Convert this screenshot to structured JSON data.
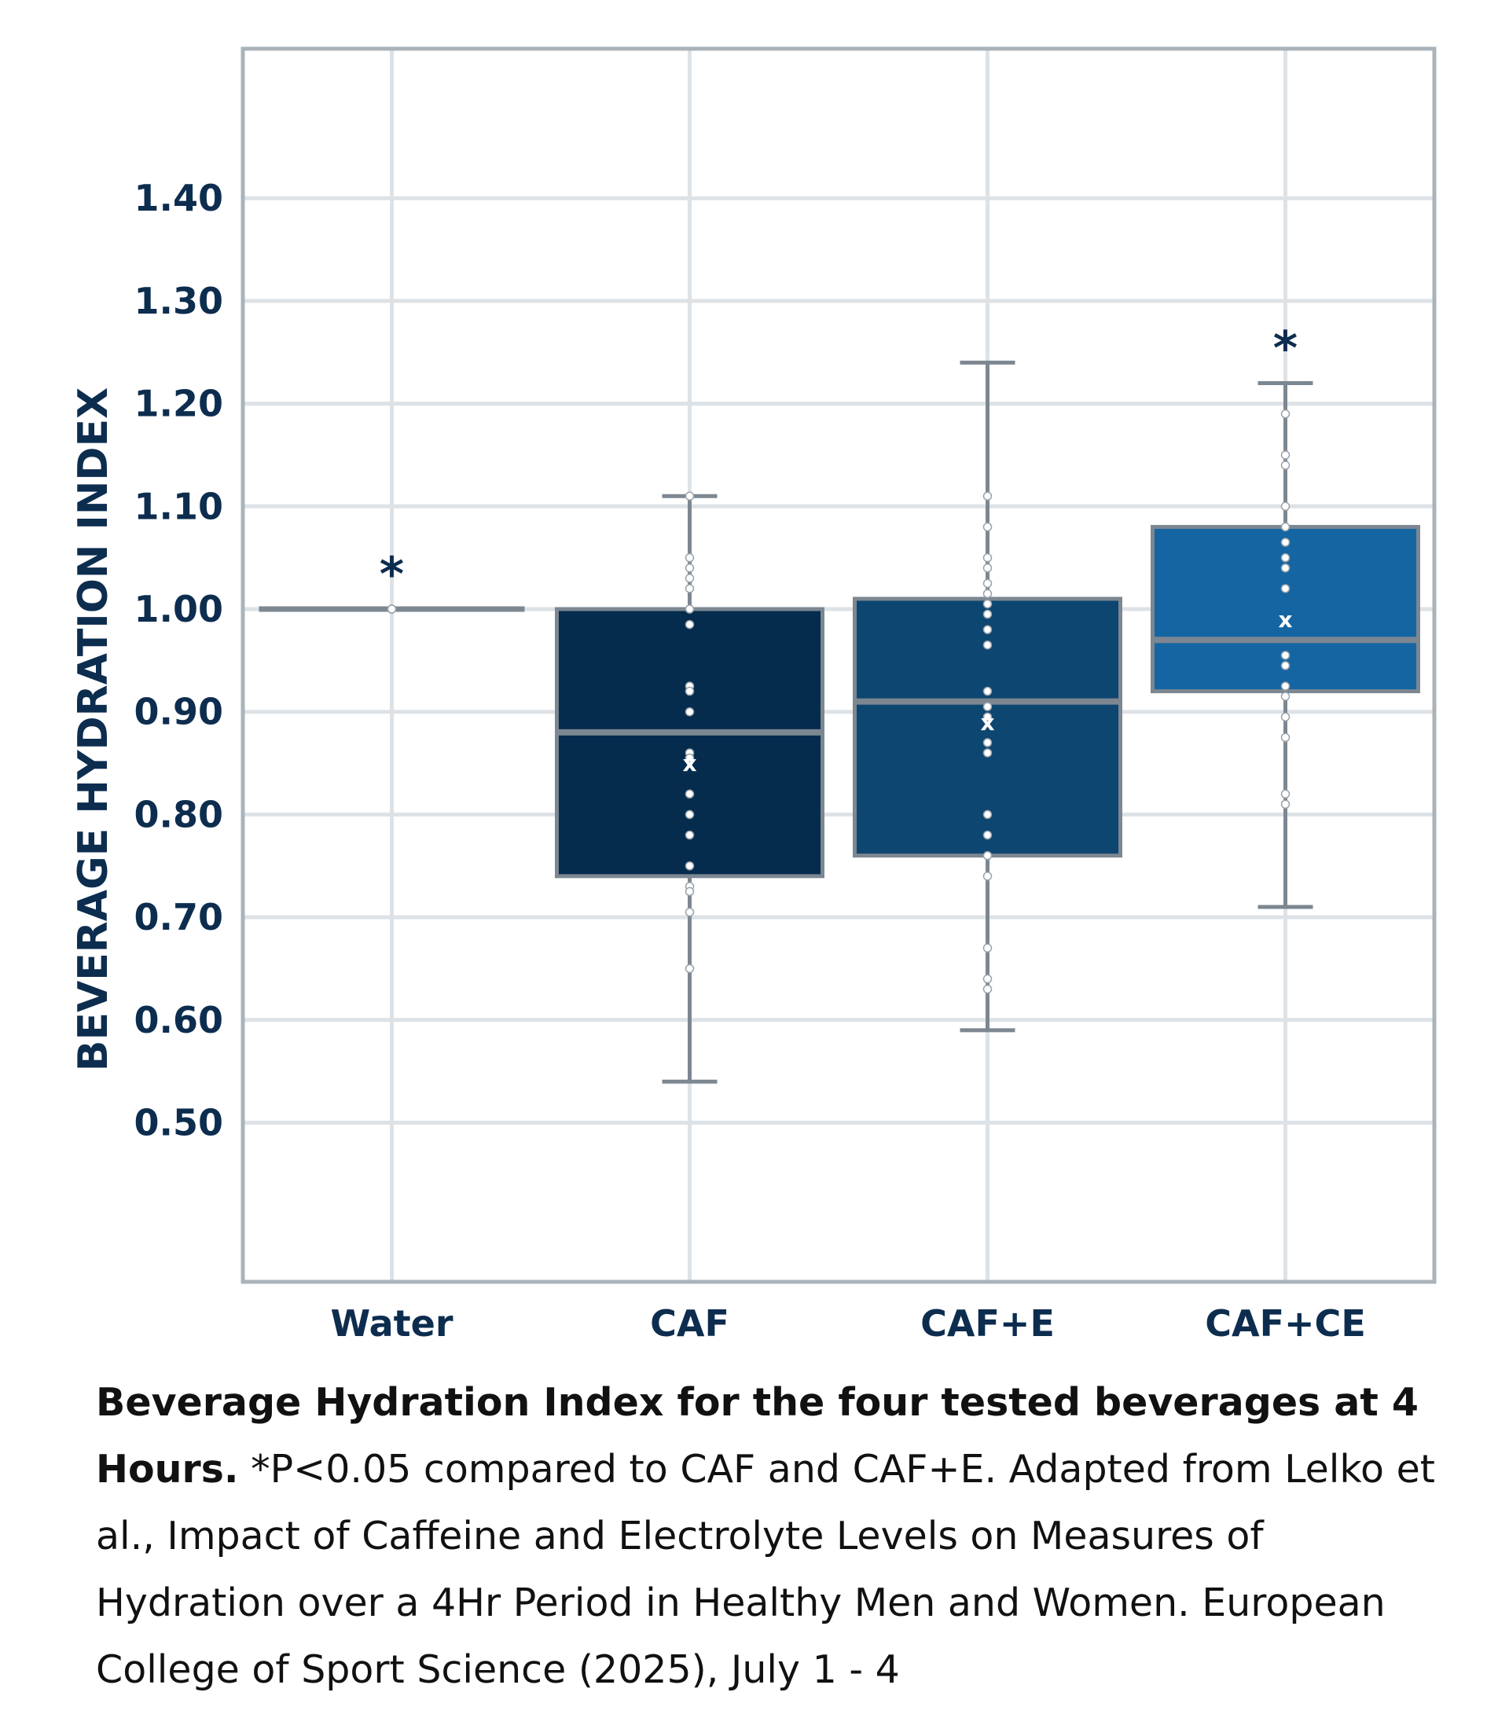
{
  "chart_data": {
    "type": "box",
    "ylabel": "BEVERAGE HYDRATION INDEX",
    "ylim": [
      0.38,
      1.55
    ],
    "yticks": [
      0.5,
      0.6,
      0.7,
      0.8,
      0.9,
      1.0,
      1.1,
      1.2,
      1.3,
      1.4
    ],
    "ytick_labels": [
      "0.50",
      "0.60",
      "0.70",
      "0.80",
      "0.90",
      "1.00",
      "1.10",
      "1.20",
      "1.30",
      "1.40"
    ],
    "grid": true,
    "categories": [
      "Water",
      "CAF",
      "CAF+E",
      "CAF+CE"
    ],
    "colors": [
      "#7c8791",
      "#052c4d",
      "#0d4670",
      "#1565a3"
    ],
    "box_edge_color": "#7c8791",
    "significance_marker": "*",
    "mean_marker": "x",
    "boxes": [
      {
        "name": "Water",
        "min": 1.0,
        "q1": 1.0,
        "median": 1.0,
        "q3": 1.0,
        "max": 1.0,
        "mean": 1.0,
        "significant": true,
        "points": [
          1.0,
          1.0,
          1.0
        ]
      },
      {
        "name": "CAF",
        "min": 0.54,
        "q1": 0.74,
        "median": 0.88,
        "q3": 1.0,
        "max": 1.11,
        "mean": 0.85,
        "significant": false,
        "points": [
          1.11,
          1.05,
          1.04,
          1.03,
          1.02,
          1.0,
          0.985,
          0.925,
          0.92,
          0.9,
          0.86,
          0.855,
          0.82,
          0.8,
          0.78,
          0.75,
          0.73,
          0.725,
          0.705,
          0.65
        ]
      },
      {
        "name": "CAF+E",
        "min": 0.59,
        "q1": 0.76,
        "median": 0.91,
        "q3": 1.01,
        "max": 1.24,
        "mean": 0.89,
        "significant": false,
        "points": [
          1.11,
          1.08,
          1.05,
          1.04,
          1.025,
          1.015,
          1.005,
          0.995,
          0.98,
          0.965,
          0.92,
          0.905,
          0.895,
          0.87,
          0.86,
          0.8,
          0.78,
          0.76,
          0.74,
          0.67,
          0.64,
          0.63
        ]
      },
      {
        "name": "CAF+CE",
        "min": 0.71,
        "q1": 0.92,
        "median": 0.97,
        "q3": 1.08,
        "max": 1.22,
        "mean": 0.99,
        "significant": true,
        "points": [
          1.19,
          1.15,
          1.14,
          1.1,
          1.08,
          1.065,
          1.05,
          1.04,
          1.02,
          0.955,
          0.945,
          0.925,
          0.915,
          0.895,
          0.875,
          0.82,
          0.81
        ]
      }
    ]
  },
  "caption": {
    "bold": "Beverage Hydration Index for the four tested beverages at 4 Hours.",
    "text": " *P<0.05 compared to CAF and CAF+E. Adapted from Lelko et al., Impact of Caffeine and Electrolyte Levels on Measures of Hydration over a 4Hr Period in Healthy Men and Women. European College of Sport Science (2025), July 1 - 4"
  }
}
